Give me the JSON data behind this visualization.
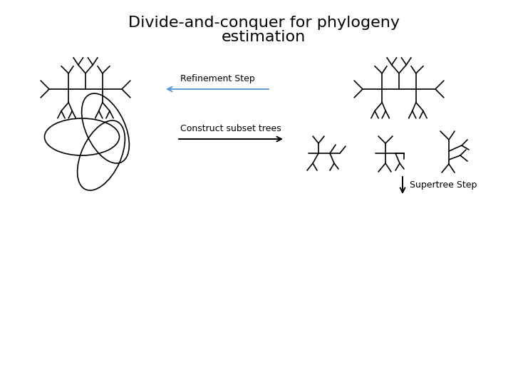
{
  "title_line1": "Divide-and-conquer for phylogeny",
  "title_line2": "estimation",
  "title_fontsize": 16,
  "bg_color": "#ffffff",
  "label_construct": "Construct subset trees",
  "label_supertree": "Supertree Step",
  "label_refinement": "Refinement Step",
  "label_fontsize": 9,
  "line_color": "#000000",
  "arrow_color_black": "#000000",
  "arrow_color_blue": "#5b9bd5"
}
